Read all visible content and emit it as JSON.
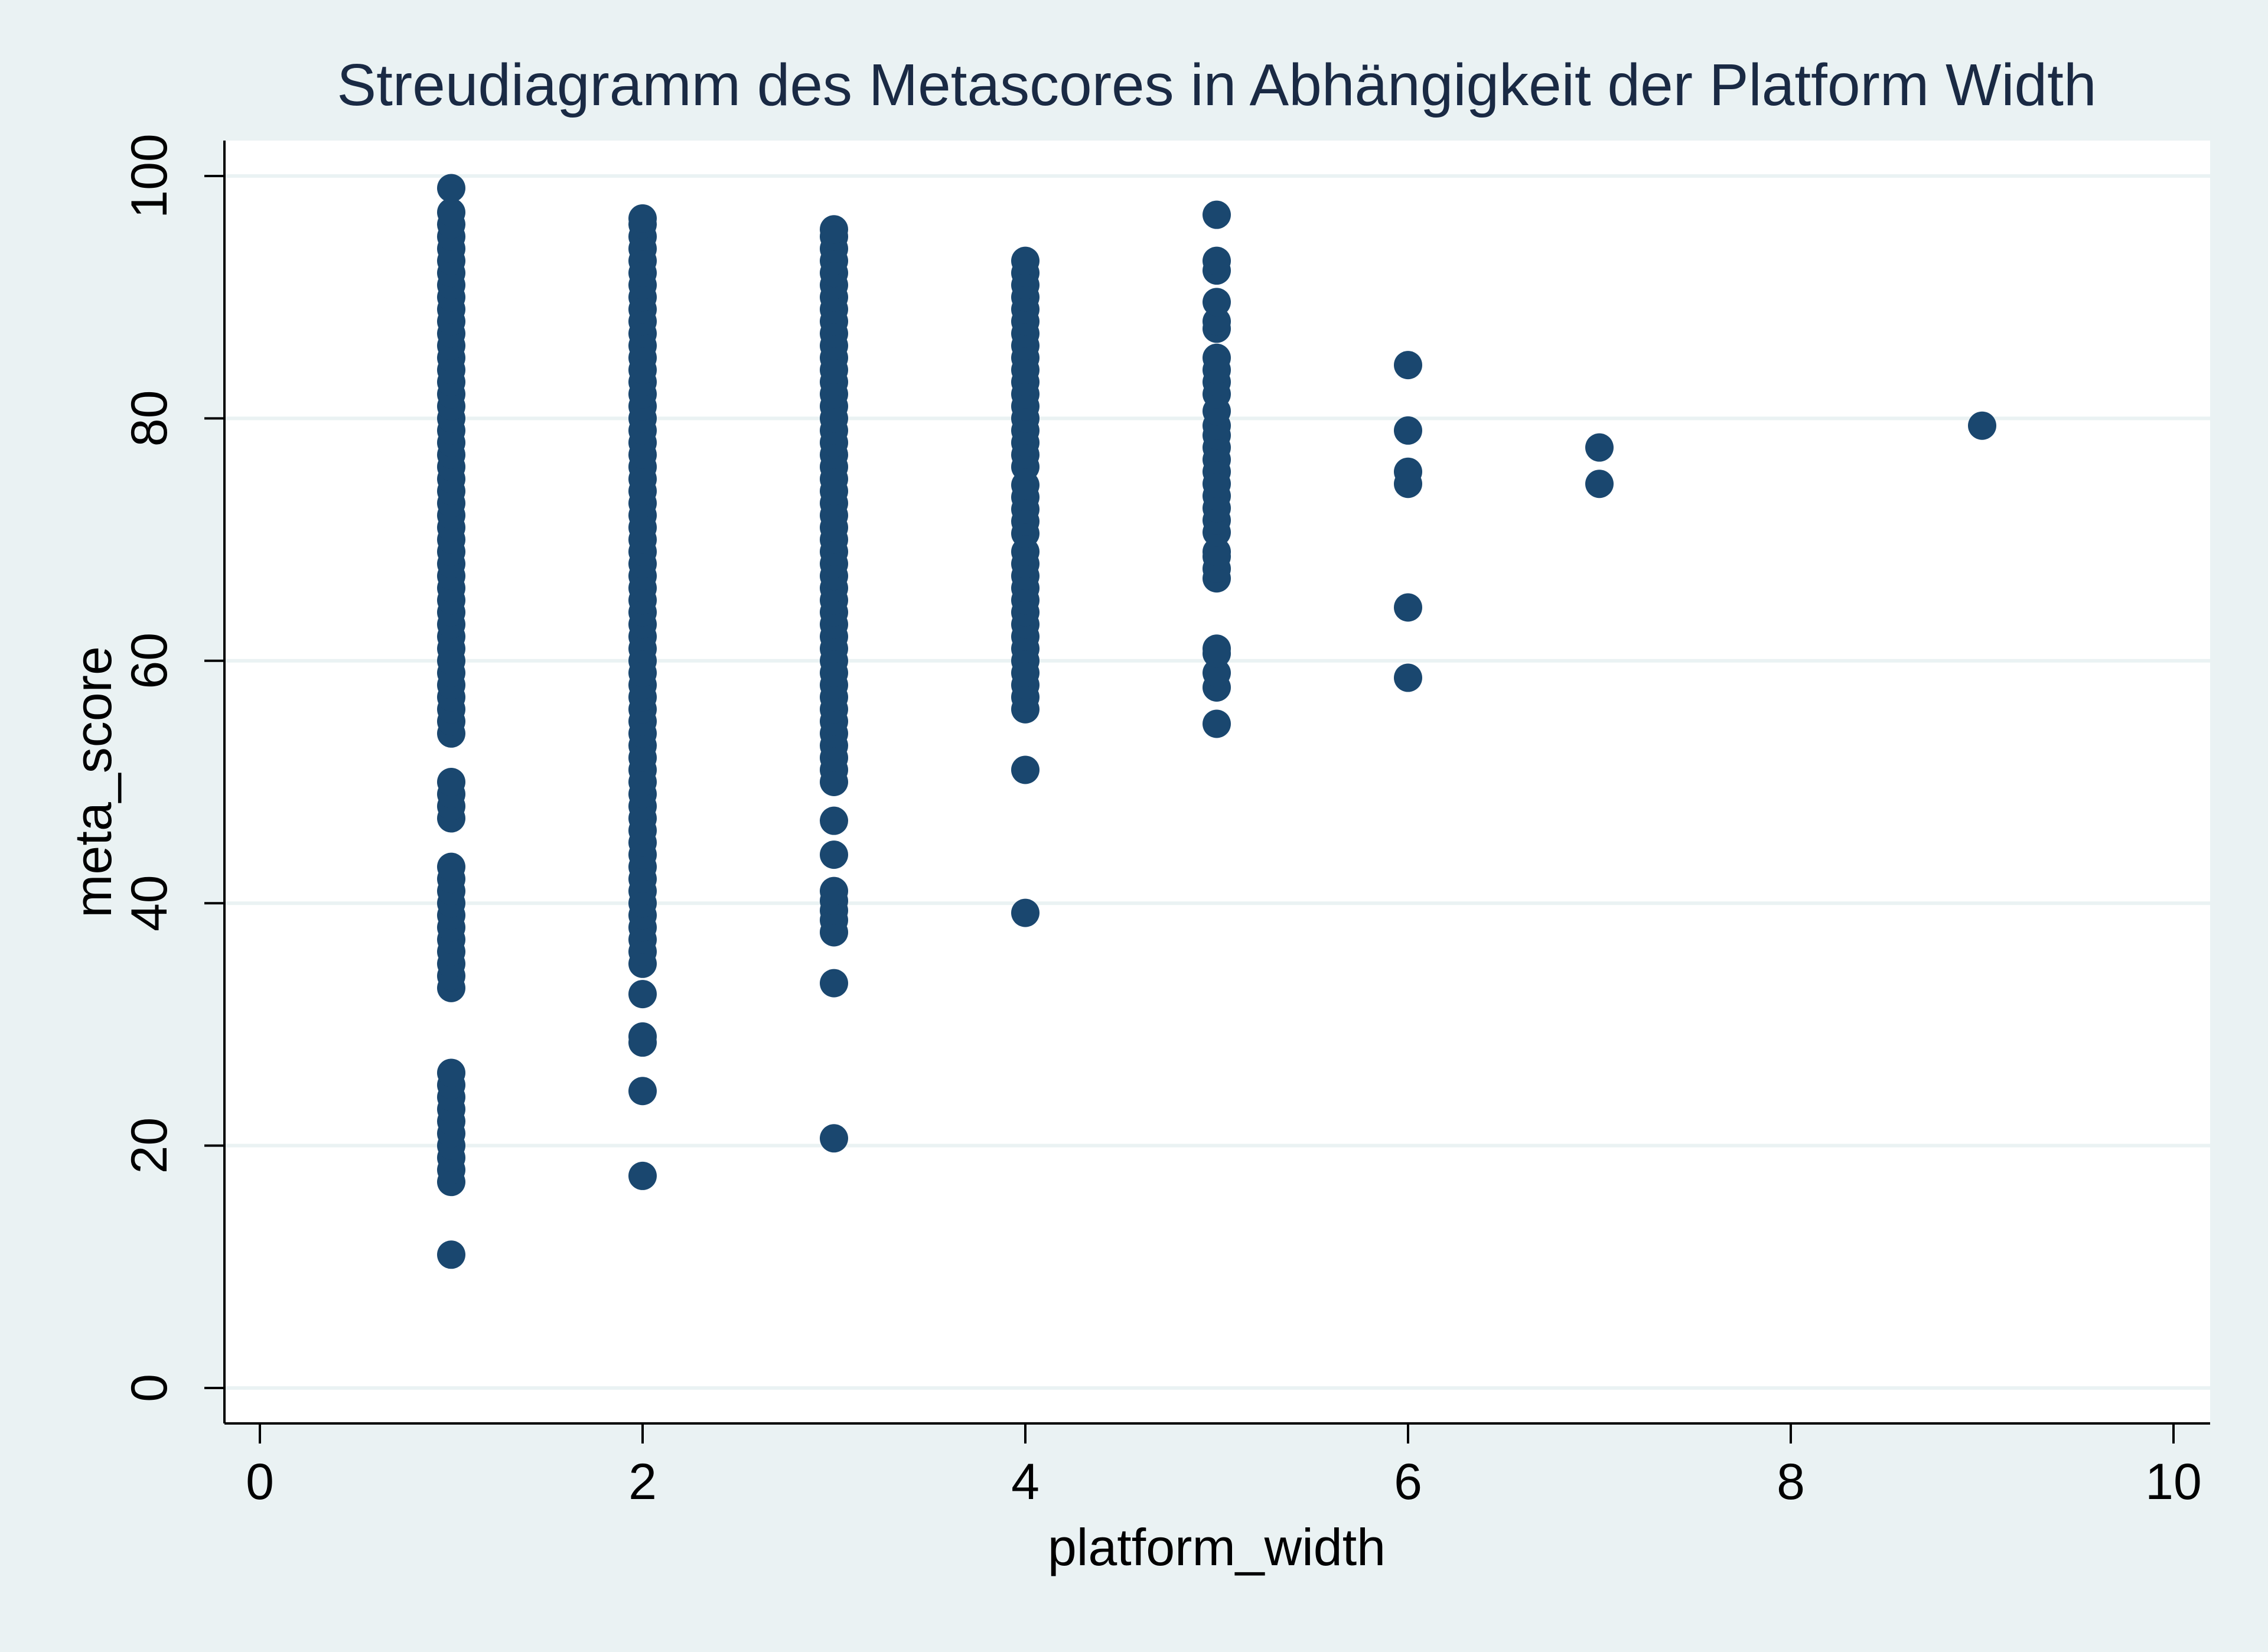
{
  "chart_data": {
    "type": "scatter",
    "title": "Streudiagramm des Metascores in Abhängigkeit der Platform Width",
    "xlabel": "platform_width",
    "ylabel": "meta_score",
    "xlim": [
      0,
      10
    ],
    "ylim": [
      0,
      100
    ],
    "xticks": [
      0,
      2,
      4,
      6,
      8,
      10
    ],
    "yticks": [
      0,
      20,
      40,
      60,
      80,
      100
    ],
    "grid": "horizontal",
    "legend": "none",
    "colors": {
      "marker": "#1a476f",
      "plot_background": "#ffffff",
      "page_background": "#eaf2f3",
      "gridline": "#eaf2f3",
      "title": "#1a2a44",
      "text": "#000000"
    },
    "series": [
      {
        "points": [
          [
            1,
            11
          ],
          [
            1,
            17
          ],
          [
            1,
            18
          ],
          [
            1,
            19
          ],
          [
            1,
            20
          ],
          [
            1,
            21
          ],
          [
            1,
            22
          ],
          [
            1,
            23
          ],
          [
            1,
            24
          ],
          [
            1,
            25
          ],
          [
            1,
            26
          ],
          [
            1,
            33
          ],
          [
            1,
            34
          ],
          [
            1,
            35
          ],
          [
            1,
            36
          ],
          [
            1,
            37
          ],
          [
            1,
            38
          ],
          [
            1,
            39
          ],
          [
            1,
            40
          ],
          [
            1,
            41
          ],
          [
            1,
            42
          ],
          [
            1,
            43
          ],
          [
            1,
            47
          ],
          [
            1,
            48
          ],
          [
            1,
            49
          ],
          [
            1,
            50
          ],
          [
            1,
            54
          ],
          [
            1,
            55
          ],
          [
            1,
            56
          ],
          [
            1,
            57
          ],
          [
            1,
            58
          ],
          [
            1,
            59
          ],
          [
            1,
            60
          ],
          [
            1,
            61
          ],
          [
            1,
            62
          ],
          [
            1,
            63
          ],
          [
            1,
            64
          ],
          [
            1,
            65
          ],
          [
            1,
            66
          ],
          [
            1,
            67
          ],
          [
            1,
            68
          ],
          [
            1,
            69
          ],
          [
            1,
            70
          ],
          [
            1,
            71
          ],
          [
            1,
            72
          ],
          [
            1,
            73
          ],
          [
            1,
            74
          ],
          [
            1,
            75
          ],
          [
            1,
            76
          ],
          [
            1,
            77
          ],
          [
            1,
            78
          ],
          [
            1,
            79
          ],
          [
            1,
            80
          ],
          [
            1,
            81
          ],
          [
            1,
            82
          ],
          [
            1,
            83
          ],
          [
            1,
            84
          ],
          [
            1,
            85
          ],
          [
            1,
            86
          ],
          [
            1,
            87
          ],
          [
            1,
            88
          ],
          [
            1,
            89
          ],
          [
            1,
            90
          ],
          [
            1,
            91
          ],
          [
            1,
            92
          ],
          [
            1,
            93
          ],
          [
            1,
            94
          ],
          [
            1,
            95
          ],
          [
            1,
            96
          ],
          [
            1,
            97
          ],
          [
            1,
            99
          ],
          [
            2,
            17.5
          ],
          [
            2,
            24.5
          ],
          [
            2,
            28.5
          ],
          [
            2,
            29
          ],
          [
            2,
            32.5
          ],
          [
            2,
            35
          ],
          [
            2,
            36
          ],
          [
            2,
            37
          ],
          [
            2,
            38
          ],
          [
            2,
            39
          ],
          [
            2,
            40
          ],
          [
            2,
            41
          ],
          [
            2,
            42
          ],
          [
            2,
            43
          ],
          [
            2,
            44
          ],
          [
            2,
            45
          ],
          [
            2,
            46
          ],
          [
            2,
            47
          ],
          [
            2,
            48
          ],
          [
            2,
            49
          ],
          [
            2,
            50
          ],
          [
            2,
            51
          ],
          [
            2,
            52
          ],
          [
            2,
            53
          ],
          [
            2,
            54
          ],
          [
            2,
            55
          ],
          [
            2,
            56
          ],
          [
            2,
            57
          ],
          [
            2,
            58
          ],
          [
            2,
            59
          ],
          [
            2,
            60
          ],
          [
            2,
            61
          ],
          [
            2,
            62
          ],
          [
            2,
            63
          ],
          [
            2,
            64
          ],
          [
            2,
            65
          ],
          [
            2,
            66
          ],
          [
            2,
            67
          ],
          [
            2,
            68
          ],
          [
            2,
            69
          ],
          [
            2,
            70
          ],
          [
            2,
            71
          ],
          [
            2,
            72
          ],
          [
            2,
            73
          ],
          [
            2,
            74
          ],
          [
            2,
            75
          ],
          [
            2,
            76
          ],
          [
            2,
            77
          ],
          [
            2,
            78
          ],
          [
            2,
            79
          ],
          [
            2,
            80
          ],
          [
            2,
            81
          ],
          [
            2,
            82
          ],
          [
            2,
            83
          ],
          [
            2,
            84
          ],
          [
            2,
            85
          ],
          [
            2,
            86
          ],
          [
            2,
            87
          ],
          [
            2,
            88
          ],
          [
            2,
            89
          ],
          [
            2,
            90
          ],
          [
            2,
            91
          ],
          [
            2,
            92
          ],
          [
            2,
            93
          ],
          [
            2,
            94
          ],
          [
            2,
            95
          ],
          [
            2,
            96
          ],
          [
            2,
            96.5
          ],
          [
            3,
            20.6
          ],
          [
            3,
            33.4
          ],
          [
            3,
            37.6
          ],
          [
            3,
            38.6
          ],
          [
            3,
            39.4
          ],
          [
            3,
            40.2
          ],
          [
            3,
            41
          ],
          [
            3,
            44
          ],
          [
            3,
            46.8
          ],
          [
            3,
            50
          ],
          [
            3,
            51
          ],
          [
            3,
            52
          ],
          [
            3,
            53
          ],
          [
            3,
            54
          ],
          [
            3,
            55
          ],
          [
            3,
            56
          ],
          [
            3,
            57
          ],
          [
            3,
            58
          ],
          [
            3,
            59
          ],
          [
            3,
            60
          ],
          [
            3,
            61
          ],
          [
            3,
            62
          ],
          [
            3,
            63
          ],
          [
            3,
            64
          ],
          [
            3,
            65
          ],
          [
            3,
            66
          ],
          [
            3,
            67
          ],
          [
            3,
            68
          ],
          [
            3,
            69
          ],
          [
            3,
            70
          ],
          [
            3,
            71
          ],
          [
            3,
            72
          ],
          [
            3,
            73
          ],
          [
            3,
            74
          ],
          [
            3,
            75
          ],
          [
            3,
            76
          ],
          [
            3,
            77
          ],
          [
            3,
            78
          ],
          [
            3,
            79
          ],
          [
            3,
            80
          ],
          [
            3,
            81
          ],
          [
            3,
            82
          ],
          [
            3,
            83
          ],
          [
            3,
            84
          ],
          [
            3,
            85
          ],
          [
            3,
            86
          ],
          [
            3,
            87
          ],
          [
            3,
            88
          ],
          [
            3,
            89
          ],
          [
            3,
            90
          ],
          [
            3,
            91
          ],
          [
            3,
            92
          ],
          [
            3,
            93
          ],
          [
            3,
            94
          ],
          [
            3,
            95
          ],
          [
            3,
            95.6
          ],
          [
            4,
            39.2
          ],
          [
            4,
            51
          ],
          [
            4,
            56
          ],
          [
            4,
            57
          ],
          [
            4,
            58
          ],
          [
            4,
            59
          ],
          [
            4,
            60
          ],
          [
            4,
            61
          ],
          [
            4,
            62
          ],
          [
            4,
            63
          ],
          [
            4,
            64
          ],
          [
            4,
            65
          ],
          [
            4,
            66
          ],
          [
            4,
            67
          ],
          [
            4,
            68
          ],
          [
            4,
            69
          ],
          [
            4,
            70.5
          ],
          [
            4,
            71.5
          ],
          [
            4,
            72.5
          ],
          [
            4,
            73.5
          ],
          [
            4,
            74.5
          ],
          [
            4,
            76
          ],
          [
            4,
            77
          ],
          [
            4,
            78
          ],
          [
            4,
            79
          ],
          [
            4,
            80
          ],
          [
            4,
            81
          ],
          [
            4,
            82
          ],
          [
            4,
            83
          ],
          [
            4,
            84
          ],
          [
            4,
            85
          ],
          [
            4,
            86
          ],
          [
            4,
            87
          ],
          [
            4,
            88
          ],
          [
            4,
            89
          ],
          [
            4,
            90
          ],
          [
            4,
            91
          ],
          [
            4,
            92
          ],
          [
            4,
            93
          ],
          [
            5,
            54.8
          ],
          [
            5,
            57.8
          ],
          [
            5,
            59
          ],
          [
            5,
            60.6
          ],
          [
            5,
            61
          ],
          [
            5,
            66.8
          ],
          [
            5,
            67.6
          ],
          [
            5,
            68.6
          ],
          [
            5,
            69
          ],
          [
            5,
            70.6
          ],
          [
            5,
            71.6
          ],
          [
            5,
            72.6
          ],
          [
            5,
            73.6
          ],
          [
            5,
            74.6
          ],
          [
            5,
            75.6
          ],
          [
            5,
            76.6
          ],
          [
            5,
            77.6
          ],
          [
            5,
            78.6
          ],
          [
            5,
            79.4
          ],
          [
            5,
            80.6
          ],
          [
            5,
            82
          ],
          [
            5,
            83
          ],
          [
            5,
            84
          ],
          [
            5,
            85
          ],
          [
            5,
            87.4
          ],
          [
            5,
            88
          ],
          [
            5,
            89.6
          ],
          [
            5,
            92.2
          ],
          [
            5,
            93
          ],
          [
            5,
            96.8
          ],
          [
            6,
            58.6
          ],
          [
            6,
            64.4
          ],
          [
            6,
            74.6
          ],
          [
            6,
            75.6
          ],
          [
            6,
            79
          ],
          [
            6,
            84.4
          ],
          [
            7,
            74.6
          ],
          [
            7,
            77.6
          ],
          [
            9,
            79.4
          ]
        ]
      }
    ]
  }
}
